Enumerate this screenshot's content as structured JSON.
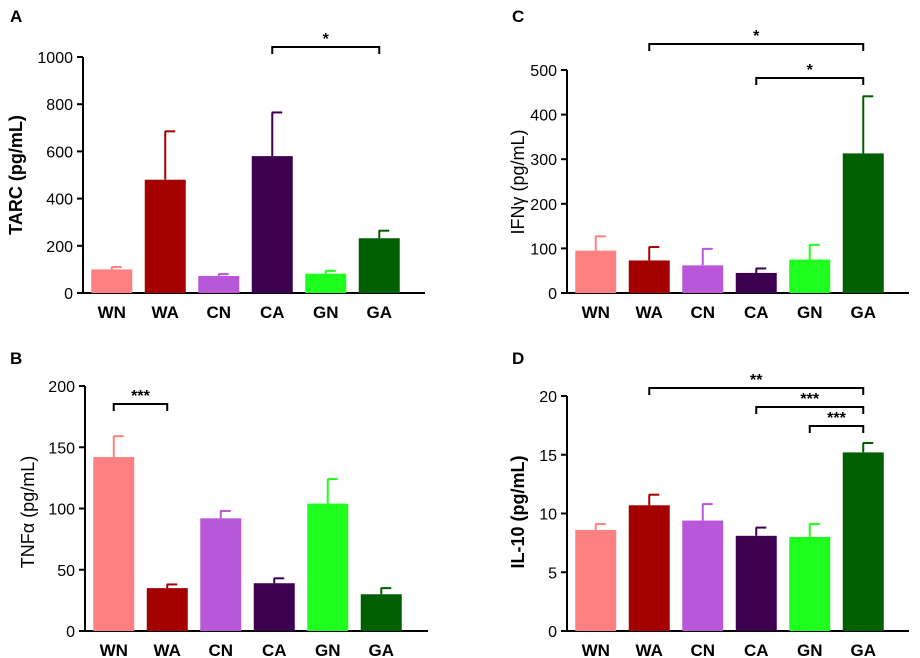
{
  "colors": {
    "WN": "#ff8080",
    "WA": "#a40000",
    "CN": "#b957d9",
    "CA": "#3d0050",
    "GN": "#1fff1f",
    "GA": "#005f00",
    "axis": "#000000"
  },
  "chart_data": [
    {
      "panel": "A",
      "type": "bar",
      "ylabel": "TARC (pg/mL)",
      "ylabel_bold": true,
      "categories": [
        "WN",
        "WA",
        "CN",
        "CA",
        "GN",
        "GA"
      ],
      "values": [
        100,
        480,
        72,
        580,
        82,
        232
      ],
      "errors": [
        10,
        205,
        8,
        185,
        12,
        32
      ],
      "ylim": [
        0,
        1000
      ],
      "yticks": [
        "0",
        "200",
        "400",
        "600",
        "800",
        "1000"
      ],
      "significance": [
        {
          "from": "CA",
          "to": "GA",
          "label": "*"
        }
      ]
    },
    {
      "panel": "C",
      "type": "bar",
      "ylabel": "IFNγ (pg/mL)",
      "ylabel_bold": false,
      "categories": [
        "WN",
        "WA",
        "CN",
        "CA",
        "GN",
        "GA"
      ],
      "values": [
        95,
        73,
        62,
        45,
        75,
        313
      ],
      "errors": [
        32,
        30,
        37,
        10,
        33,
        128
      ],
      "ylim": [
        0,
        500
      ],
      "yticks": [
        "0",
        "100",
        "200",
        "300",
        "400",
        "500"
      ],
      "significance": [
        {
          "from": "WA",
          "to": "GA",
          "label": "*"
        },
        {
          "from": "CA",
          "to": "GA",
          "label": "*"
        }
      ]
    },
    {
      "panel": "B",
      "type": "bar",
      "ylabel": "TNFα (pg/mL)",
      "ylabel_bold": false,
      "categories": [
        "WN",
        "WA",
        "CN",
        "CA",
        "GN",
        "GA"
      ],
      "values": [
        142,
        35,
        92,
        39,
        104,
        30
      ],
      "errors": [
        17,
        3,
        6,
        4,
        20,
        5
      ],
      "ylim": [
        0,
        200
      ],
      "yticks": [
        "0",
        "50",
        "100",
        "150",
        "200"
      ],
      "significance": [
        {
          "from": "WN",
          "to": "WA",
          "label": "***"
        }
      ]
    },
    {
      "panel": "D",
      "type": "bar",
      "ylabel": "IL-10 (pg/mL)",
      "ylabel_bold": true,
      "categories": [
        "WN",
        "WA",
        "CN",
        "CA",
        "GN",
        "GA"
      ],
      "values": [
        8.6,
        10.7,
        9.4,
        8.1,
        8.0,
        15.2
      ],
      "errors": [
        0.5,
        0.9,
        1.4,
        0.7,
        1.1,
        0.8
      ],
      "ylim": [
        0,
        20
      ],
      "yticks": [
        "0",
        "5",
        "10",
        "15",
        "20"
      ],
      "significance": [
        {
          "from": "WA",
          "to": "GA",
          "label": "**"
        },
        {
          "from": "CA",
          "to": "GA",
          "label": "***"
        },
        {
          "from": "GN",
          "to": "GA",
          "label": "***"
        }
      ]
    }
  ]
}
